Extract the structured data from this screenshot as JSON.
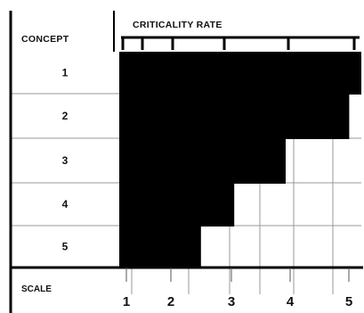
{
  "chart_data": {
    "type": "bar",
    "orientation": "horizontal",
    "title": "CRITICALITY RATE",
    "row_header": "CONCEPT",
    "scale_label": "SCALE",
    "categories": [
      "1",
      "2",
      "3",
      "4",
      "5"
    ],
    "values": [
      5.0,
      4.8,
      3.75,
      2.9,
      2.35
    ],
    "scale_ticks": [
      "1",
      "2",
      "3",
      "4",
      "5"
    ],
    "xlim": [
      1,
      5
    ],
    "bar_color": "#000000",
    "grid": true
  }
}
